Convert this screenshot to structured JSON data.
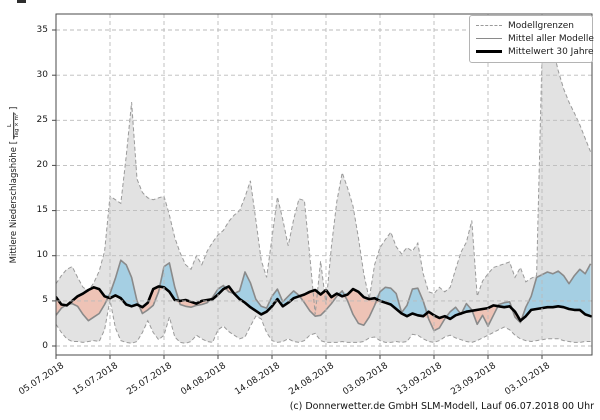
{
  "caption": "(c) Donnerwetter.de GmbH SLM-Modell, Lauf 06.07.2018 00 Uhr",
  "legend": {
    "items": [
      {
        "label": "Modellgrenzen"
      },
      {
        "label": "Mittel aller Modelle"
      },
      {
        "label": "Mittelwert 30 Jahre"
      }
    ]
  },
  "y_axis": {
    "label_prefix": "Mittlere Niederschlagshöhe [",
    "unit_numerator": "L",
    "unit_denominator": "Tag × m²",
    "label_suffix": "]",
    "tick_values": [
      0,
      5,
      10,
      15,
      20,
      25,
      30,
      35
    ]
  },
  "x_axis": {
    "tick_labels": [
      "05.07.2018",
      "15.07.2018",
      "25.07.2018",
      "04.08.2018",
      "14.08.2018",
      "24.08.2018",
      "03.09.2018",
      "13.09.2018",
      "23.09.2018",
      "03.10.2018"
    ],
    "tick_days": [
      0,
      10,
      20,
      30,
      40,
      50,
      60,
      70,
      80,
      90
    ]
  },
  "chart_data": {
    "type": "line",
    "title": "",
    "xlabel": "",
    "ylabel": "Mittlere Niederschlagshöhe [L / (Tag × m²)]",
    "x_unit": "Tag (05.07.2018 bis ca. 12.10.2018, taeglich)",
    "days": 100,
    "ylim": [
      -1,
      36.8
    ],
    "grid": true,
    "legend_position": "upper right",
    "colors": {
      "range_fill": "#dbdbdb",
      "above_fill": "#a5cfe3",
      "below_fill": "#eec3b6",
      "boundary_line": "#9a9a9a",
      "model_mean_line": "#8a8a8a",
      "mean30_line": "#000000",
      "grid_line": "#bbbbbb",
      "frame": "#4a4a4a"
    },
    "series": [
      {
        "name": "Modellgrenzen (obere Grenze)",
        "style": "dashed",
        "values": [
          6.9,
          7.8,
          8.5,
          8.8,
          7.6,
          6.5,
          6.1,
          7.0,
          8.3,
          10.5,
          16.6,
          16.2,
          15.8,
          21.0,
          27.0,
          18.5,
          17.0,
          16.4,
          16.2,
          16.4,
          16.6,
          14.5,
          12.0,
          10.3,
          9.0,
          8.5,
          10.0,
          9.0,
          10.5,
          11.5,
          12.3,
          12.8,
          13.8,
          14.5,
          15.0,
          16.5,
          18.3,
          14.0,
          9.5,
          7.6,
          12.0,
          16.5,
          14.0,
          11.1,
          14.0,
          16.3,
          16.1,
          10.0,
          3.5,
          9.4,
          4.6,
          11.0,
          16.0,
          19.2,
          17.5,
          15.5,
          12.0,
          8.0,
          5.2,
          9.0,
          10.9,
          11.8,
          12.6,
          11.0,
          10.2,
          10.9,
          10.5,
          11.4,
          8.0,
          6.0,
          5.8,
          6.5,
          6.0,
          6.5,
          8.5,
          10.4,
          11.5,
          13.9,
          5.5,
          7.2,
          8.0,
          8.7,
          8.9,
          9.1,
          9.3,
          7.6,
          8.7,
          7.1,
          7.5,
          7.8,
          32.0,
          34.5,
          33.0,
          30.5,
          28.5,
          27.0,
          25.8,
          24.5,
          23.0,
          21.5
        ]
      },
      {
        "name": "Modellgrenzen (untere Grenze)",
        "style": "dashed",
        "values": [
          2.4,
          1.5,
          0.8,
          0.5,
          0.5,
          0.4,
          0.5,
          0.6,
          0.5,
          1.8,
          5.1,
          2.0,
          0.6,
          0.4,
          0.3,
          0.5,
          1.5,
          2.8,
          1.5,
          0.7,
          1.2,
          3.2,
          1.0,
          0.4,
          0.3,
          0.5,
          1.2,
          0.8,
          0.5,
          0.4,
          1.8,
          2.2,
          1.6,
          1.2,
          0.8,
          1.0,
          2.2,
          3.3,
          3.0,
          1.5,
          0.6,
          0.4,
          0.5,
          0.8,
          0.5,
          0.4,
          0.6,
          1.2,
          1.4,
          0.6,
          0.4,
          0.4,
          0.4,
          0.5,
          0.4,
          0.4,
          0.4,
          0.5,
          0.9,
          1.0,
          0.6,
          0.4,
          0.4,
          0.5,
          0.4,
          0.5,
          1.3,
          1.2,
          0.8,
          0.5,
          0.4,
          0.6,
          1.0,
          1.2,
          0.9,
          0.7,
          0.5,
          0.4,
          0.6,
          0.9,
          1.2,
          1.5,
          1.8,
          2.1,
          1.8,
          1.2,
          0.8,
          0.6,
          0.5,
          0.6,
          0.7,
          0.8,
          0.8,
          0.8,
          0.6,
          0.5,
          0.4,
          0.4,
          0.5,
          0.5
        ]
      },
      {
        "name": "Mittel aller Modelle",
        "style": "solid-gray",
        "values": [
          3.4,
          4.2,
          4.6,
          4.7,
          4.4,
          3.5,
          2.8,
          3.2,
          3.6,
          4.6,
          5.8,
          7.5,
          9.5,
          9.0,
          7.6,
          5.0,
          3.6,
          4.0,
          4.5,
          6.0,
          8.8,
          9.2,
          6.5,
          4.6,
          4.4,
          4.3,
          4.5,
          4.6,
          4.8,
          5.4,
          6.3,
          6.7,
          6.0,
          5.8,
          6.1,
          8.2,
          7.0,
          5.2,
          4.4,
          4.2,
          5.5,
          6.3,
          4.9,
          5.5,
          6.1,
          5.6,
          4.8,
          3.9,
          3.3,
          3.4,
          4.0,
          4.7,
          5.5,
          6.1,
          5.0,
          3.5,
          2.5,
          2.3,
          3.2,
          4.5,
          6.0,
          6.5,
          6.4,
          5.8,
          3.7,
          4.5,
          6.3,
          6.4,
          5.0,
          3.0,
          1.7,
          2.0,
          3.0,
          3.8,
          4.3,
          3.5,
          4.7,
          4.0,
          2.4,
          3.4,
          2.2,
          3.4,
          4.6,
          4.8,
          4.9,
          3.2,
          2.6,
          4.3,
          5.5,
          7.6,
          7.9,
          8.2,
          8.0,
          8.3,
          7.8,
          6.9,
          7.8,
          8.5,
          8.0,
          9.1
        ]
      },
      {
        "name": "Mittelwert 30 Jahre",
        "style": "solid-black",
        "values": [
          5.4,
          4.6,
          4.5,
          5.0,
          5.5,
          5.8,
          6.2,
          6.5,
          6.3,
          5.5,
          5.3,
          5.6,
          5.3,
          4.6,
          4.4,
          4.6,
          4.3,
          4.8,
          6.3,
          6.6,
          6.5,
          6.0,
          5.1,
          5.0,
          5.1,
          4.9,
          4.7,
          5.0,
          5.1,
          5.2,
          5.7,
          6.3,
          6.6,
          5.8,
          5.2,
          4.8,
          4.3,
          3.9,
          3.5,
          3.8,
          4.4,
          5.2,
          4.4,
          4.8,
          5.3,
          5.5,
          5.7,
          6.0,
          6.2,
          5.7,
          6.2,
          5.4,
          5.8,
          5.5,
          5.7,
          6.3,
          6.0,
          5.4,
          5.2,
          5.3,
          5.0,
          4.8,
          4.6,
          4.1,
          3.6,
          3.3,
          3.6,
          3.4,
          3.3,
          3.8,
          3.4,
          3.1,
          3.3,
          3.0,
          3.4,
          3.6,
          3.8,
          3.9,
          4.0,
          4.1,
          4.2,
          4.5,
          4.4,
          4.3,
          4.4,
          3.8,
          2.8,
          3.3,
          4.0,
          4.1,
          4.2,
          4.3,
          4.3,
          4.4,
          4.3,
          4.1,
          4.0,
          4.0,
          3.5,
          3.3
        ]
      }
    ],
    "fill_rules": [
      {
        "name": "Modellgrenzen-Bereich",
        "between": [
          0,
          1
        ],
        "color_key": "range_fill"
      },
      {
        "name": "Modellmittel ueber 30-Jahre-Mittel",
        "between": [
          2,
          3
        ],
        "where": "above",
        "color_key": "above_fill"
      },
      {
        "name": "Modellmittel unter 30-Jahre-Mittel",
        "between": [
          2,
          3
        ],
        "where": "below",
        "color_key": "below_fill"
      }
    ]
  }
}
